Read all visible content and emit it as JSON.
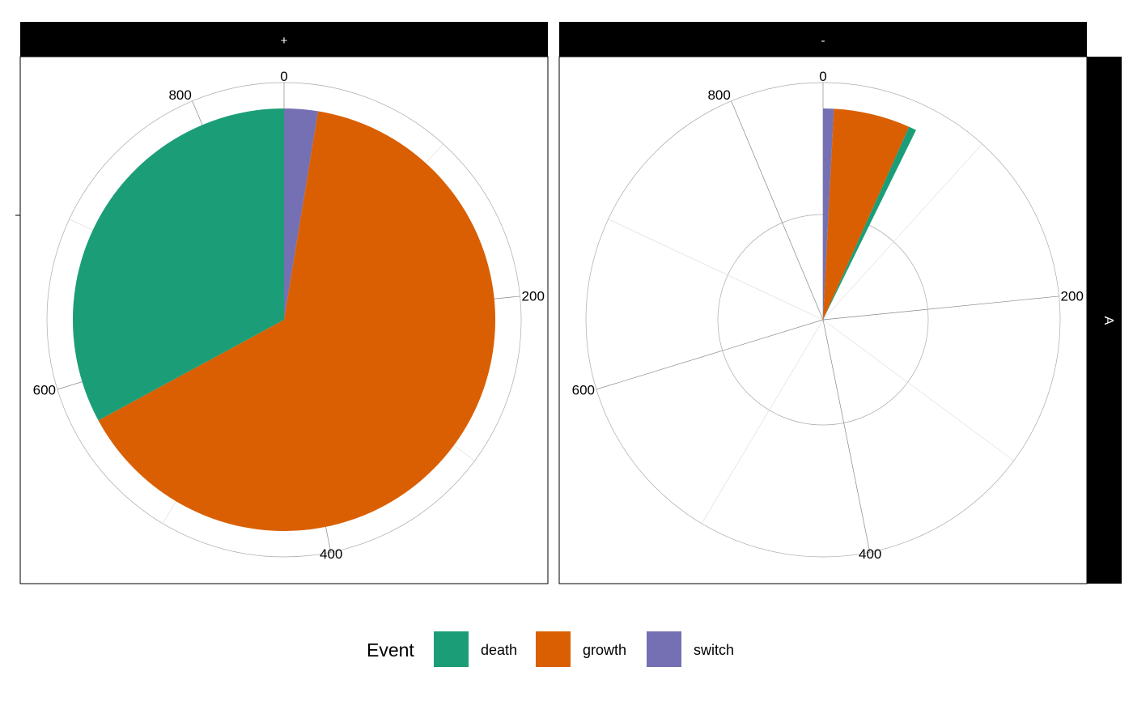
{
  "chart_data": {
    "type": "pie",
    "coord": "polar (theta = count)",
    "facet_columns": [
      "+",
      "-"
    ],
    "facet_rows": [
      "A"
    ],
    "theta_ticks": [
      0,
      200,
      400,
      600,
      800
    ],
    "theta_max": 854,
    "y_tick_labels": [
      "-"
    ],
    "panels": [
      {
        "column": "+",
        "row": "A",
        "values": {
          "switch": 22,
          "growth": 551,
          "death": 281
        }
      },
      {
        "column": "-",
        "row": "A",
        "values": {
          "switch": 7,
          "growth": 50,
          "death": 5
        }
      }
    ],
    "series_order": [
      "switch",
      "growth",
      "death"
    ],
    "legend": {
      "title": "Event",
      "position": "bottom",
      "entries": [
        {
          "label": "death",
          "color": "#1B9E77"
        },
        {
          "label": "growth",
          "color": "#D95F02"
        },
        {
          "label": "switch",
          "color": "#7570B3"
        }
      ]
    }
  }
}
